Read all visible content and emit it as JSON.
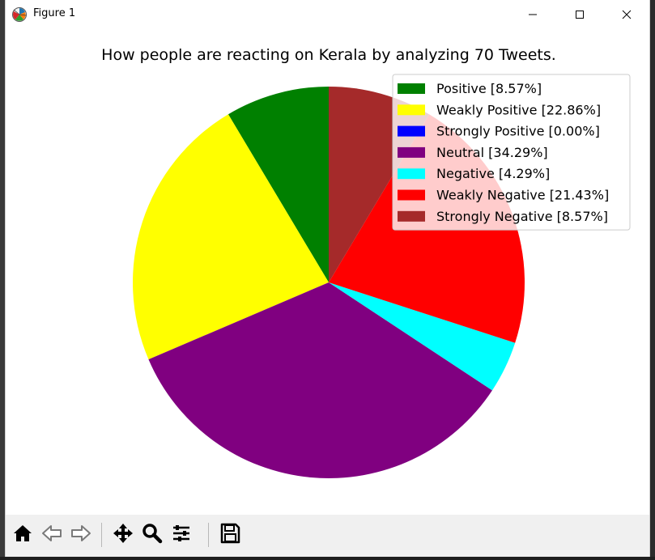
{
  "window": {
    "title": "Figure 1",
    "icon": "matplotlib-logo-icon",
    "controls": [
      "minimize-icon",
      "maximize-icon",
      "close-icon"
    ]
  },
  "toolbar": {
    "buttons": [
      "home-icon",
      "back-arrow-icon",
      "forward-arrow-icon",
      "pan-icon",
      "zoom-icon",
      "configure-subplots-icon",
      "save-icon"
    ]
  },
  "chart_data": {
    "type": "pie",
    "title": "How people are reacting on Kerala by analyzing 70 Tweets.",
    "legend_position": "top-right",
    "start_angle": 90,
    "direction": "counterclockwise",
    "slices": [
      {
        "label": "Positive [8.57%]",
        "value": 8.57,
        "color": "#008000"
      },
      {
        "label": "Weakly Positive [22.86%]",
        "value": 22.86,
        "color": "#ffff00"
      },
      {
        "label": "Strongly Positive [0.00%]",
        "value": 0.0,
        "color": "#0000ff"
      },
      {
        "label": "Neutral [34.29%]",
        "value": 34.29,
        "color": "#800080"
      },
      {
        "label": "Negative [4.29%]",
        "value": 4.29,
        "color": "#00ffff"
      },
      {
        "label": "Weakly Negative [21.43%]",
        "value": 21.43,
        "color": "#ff0000"
      },
      {
        "label": "Strongly Negative [8.57%]",
        "value": 8.57,
        "color": "#a52a2a"
      }
    ]
  }
}
